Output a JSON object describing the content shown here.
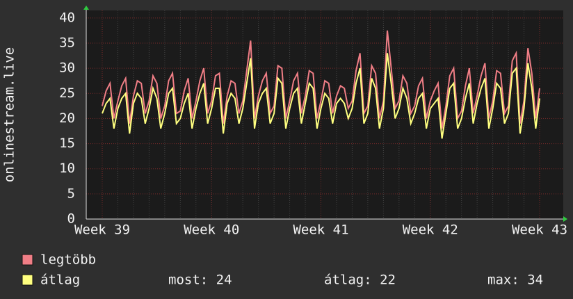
{
  "chart_data": {
    "type": "line",
    "ylabel": "onlinestream.live",
    "categories": [
      "Week 39",
      null,
      null,
      null,
      null,
      null,
      null,
      null,
      null,
      null,
      null,
      null,
      null,
      null,
      null,
      null,
      null,
      null,
      null,
      null,
      null,
      null,
      null,
      null,
      null,
      null,
      null,
      null,
      "Week 40",
      null,
      null,
      null,
      null,
      null,
      null,
      null,
      null,
      null,
      null,
      null,
      null,
      null,
      null,
      null,
      null,
      null,
      null,
      null,
      null,
      null,
      null,
      null,
      null,
      null,
      null,
      null,
      "Week 41",
      null,
      null,
      null,
      null,
      null,
      null,
      null,
      null,
      null,
      null,
      null,
      null,
      null,
      null,
      null,
      null,
      null,
      null,
      null,
      null,
      null,
      null,
      null,
      null,
      null,
      null,
      null,
      "Week 42",
      null,
      null,
      null,
      null,
      null,
      null,
      null,
      null,
      null,
      null,
      null,
      null,
      null,
      null,
      null,
      null,
      null,
      null,
      null,
      null,
      null,
      null,
      null,
      null,
      null,
      null,
      null,
      "Week 43"
    ],
    "series": [
      {
        "name": "legtöbb",
        "color": "#f07e86",
        "values": [
          22.5,
          25.5,
          27,
          20,
          23.5,
          26.5,
          28,
          19,
          24.5,
          27.5,
          27,
          21,
          23.5,
          28.5,
          27,
          20,
          22.5,
          27.5,
          29,
          21,
          21.5,
          25.5,
          28,
          20,
          23.5,
          27.5,
          30,
          21,
          23.5,
          28.5,
          29,
          19,
          24.5,
          27.5,
          27,
          21,
          23.5,
          29.5,
          35.5,
          20,
          24.5,
          27.5,
          29,
          21,
          22.5,
          30.5,
          30,
          20,
          23.5,
          27.5,
          29,
          21,
          24.5,
          29.5,
          29,
          20,
          23.5,
          27.5,
          27,
          21,
          24.5,
          26.5,
          26,
          22,
          23.5,
          29.5,
          33,
          21,
          22.5,
          30.5,
          29,
          20,
          23.5,
          37.5,
          30,
          22,
          23.5,
          28.5,
          27,
          21,
          22.5,
          26.5,
          28,
          20,
          23.5,
          25.5,
          27,
          18,
          22.5,
          28.5,
          30,
          20,
          21.5,
          26.5,
          30,
          21,
          24.5,
          28.5,
          31,
          20,
          23.5,
          29.5,
          29,
          21,
          22.5,
          31.5,
          33,
          19,
          23.5,
          34,
          29,
          20,
          26
        ]
      },
      {
        "name": "átlag",
        "color": "#ffff80",
        "values": [
          21,
          23,
          24,
          18,
          22,
          24,
          25,
          17,
          23,
          25,
          24,
          19,
          22,
          26,
          24,
          18,
          21,
          25,
          26,
          19,
          20,
          23,
          25,
          18,
          22,
          25,
          27,
          19,
          22,
          26,
          26,
          17,
          23,
          25,
          24,
          19,
          22,
          27,
          32,
          18,
          23,
          25,
          26,
          19,
          21,
          28,
          27,
          18,
          22,
          25,
          26,
          19,
          23,
          27,
          26,
          18,
          22,
          25,
          24,
          19,
          23,
          24,
          23,
          20,
          22,
          27,
          30,
          19,
          21,
          28,
          26,
          18,
          22,
          33,
          27,
          20,
          22,
          26,
          24,
          19,
          21,
          24,
          25,
          18,
          22,
          23,
          24,
          16,
          21,
          26,
          27,
          18,
          20,
          24,
          27,
          19,
          23,
          26,
          28,
          18,
          22,
          27,
          26,
          19,
          21,
          29,
          30,
          17,
          22,
          31,
          26,
          18,
          24
        ]
      }
    ],
    "stats": [
      "most: 24",
      "átlag: 22",
      "max: 34"
    ],
    "ylim": [
      0,
      41.5
    ],
    "yticks": [
      0,
      5,
      10,
      15,
      20,
      25,
      30,
      35,
      40
    ],
    "grid": true
  }
}
